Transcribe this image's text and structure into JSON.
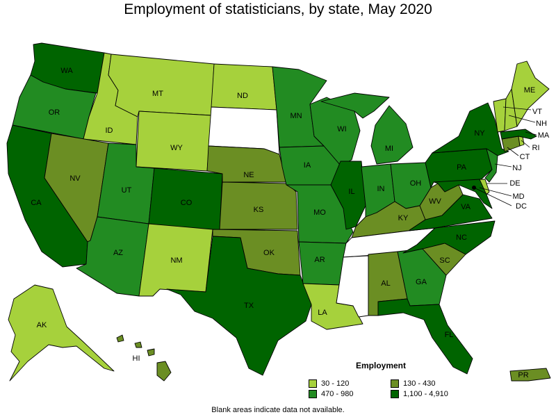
{
  "title": "Employment of statisticians, by state, May 2020",
  "footnote": "Blank areas indicate data not available.",
  "legend": {
    "title": "Employment",
    "items": [
      {
        "label": "30 - 120",
        "color": "#a6d13c"
      },
      {
        "label": "130 - 430",
        "color": "#6b8e23"
      },
      {
        "label": "470 - 980",
        "color": "#228b22"
      },
      {
        "label": "1,100 - 4,910",
        "color": "#006400"
      }
    ]
  },
  "states": {
    "WA": "WA",
    "OR": "OR",
    "CA": "CA",
    "ID": "ID",
    "NV": "NV",
    "MT": "MT",
    "WY": "WY",
    "UT": "UT",
    "AZ": "AZ",
    "CO": "CO",
    "NM": "NM",
    "ND": "ND",
    "NE": "NE",
    "KS": "KS",
    "OK": "OK",
    "TX": "TX",
    "MN": "MN",
    "IA": "IA",
    "MO": "MO",
    "AR": "AR",
    "LA": "LA",
    "WI": "WI",
    "IL": "IL",
    "MI": "MI",
    "IN": "IN",
    "OH": "OH",
    "KY": "KY",
    "AL": "AL",
    "GA": "GA",
    "FL": "FL",
    "SC": "SC",
    "NC": "NC",
    "VA": "VA",
    "WV": "WV",
    "PA": "PA",
    "NY": "NY",
    "ME": "ME",
    "VT": "VT",
    "NH": "NH",
    "MA": "MA",
    "RI": "RI",
    "CT": "CT",
    "NJ": "NJ",
    "DE": "DE",
    "MD": "MD",
    "DC": "DC",
    "AK": "AK",
    "HI": "HI",
    "PR": "PR"
  }
}
